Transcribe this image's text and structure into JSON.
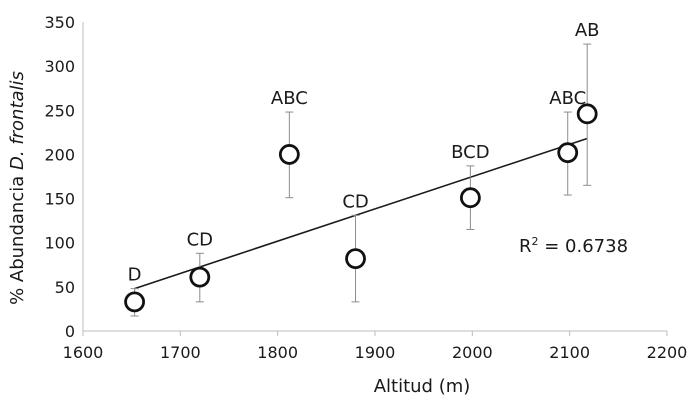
{
  "chart_data": {
    "type": "scatter",
    "title": "",
    "xlabel": "Altitud (m)",
    "ylabel_prefix": "% Abundancia ",
    "ylabel_italic": "D. frontalis",
    "xlim": [
      1600,
      2200
    ],
    "ylim": [
      0,
      350
    ],
    "xticks": [
      1600,
      1700,
      1800,
      1900,
      2000,
      2100,
      2200
    ],
    "yticks": [
      0,
      50,
      100,
      150,
      200,
      250,
      300,
      350
    ],
    "grid": false,
    "points": [
      {
        "x": 1653,
        "y": 33,
        "err_low": 17,
        "err_high": 48,
        "label": "D"
      },
      {
        "x": 1720,
        "y": 61,
        "err_low": 33,
        "err_high": 88,
        "label": "CD"
      },
      {
        "x": 1812,
        "y": 200,
        "err_low": 151,
        "err_high": 248,
        "label": "ABC"
      },
      {
        "x": 1880,
        "y": 82,
        "err_low": 33,
        "err_high": 131,
        "label": "CD"
      },
      {
        "x": 1998,
        "y": 151,
        "err_low": 115,
        "err_high": 187,
        "label": "BCD"
      },
      {
        "x": 2098,
        "y": 202,
        "err_low": 154,
        "err_high": 248,
        "label": "ABC"
      },
      {
        "x": 2118,
        "y": 246,
        "err_low": 165,
        "err_high": 325,
        "label": "AB"
      }
    ],
    "trendline": {
      "x": [
        1653,
        2118
      ],
      "y": [
        48,
        218
      ]
    },
    "r2_prefix": "R",
    "r2_superscript": "2",
    "r2_value": " = 0.6738"
  }
}
